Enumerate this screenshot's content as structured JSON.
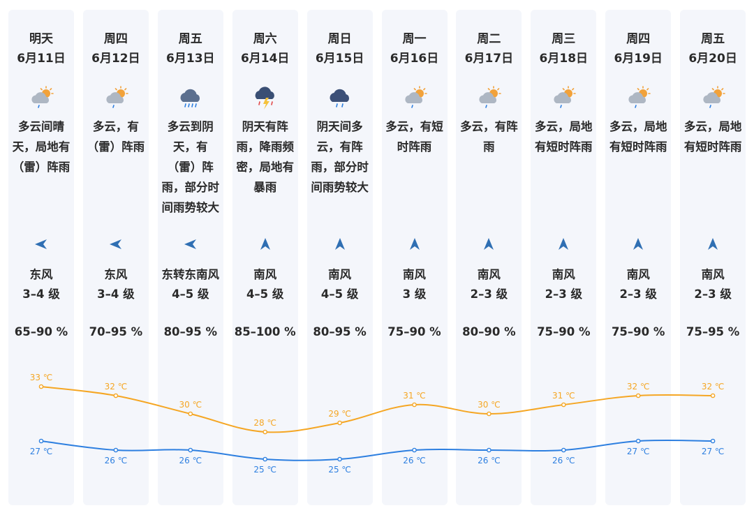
{
  "forecast": [
    {
      "day": "明天",
      "date": "6月11日",
      "icon": "cloud-sun-rain-icon",
      "desc": "多云间晴天，局地有（雷）阵雨",
      "wind_dir_icon": "arrow-left-icon",
      "wind_dir": "东风",
      "wind_level": "3–4 级",
      "humidity": "65–90 %"
    },
    {
      "day": "周四",
      "date": "6月12日",
      "icon": "cloud-sun-rain-icon",
      "desc": "多云，有（雷）阵雨",
      "wind_dir_icon": "arrow-left-icon",
      "wind_dir": "东风",
      "wind_level": "3–4 级",
      "humidity": "70–95 %"
    },
    {
      "day": "周五",
      "date": "6月13日",
      "icon": "cloud-heavy-rain-icon",
      "desc": "多云到阴天，有（雷）阵雨，部分时间雨势较大",
      "wind_dir_icon": "arrow-left-icon",
      "wind_dir": "东转东南风",
      "wind_level": "4–5 级",
      "humidity": "80–95 %"
    },
    {
      "day": "周六",
      "date": "6月14日",
      "icon": "thunderstorm-icon",
      "desc": "阴天有阵雨，降雨频密，局地有暴雨",
      "wind_dir_icon": "arrow-up-icon",
      "wind_dir": "南风",
      "wind_level": "4–5 级",
      "humidity": "85–100 %"
    },
    {
      "day": "周日",
      "date": "6月15日",
      "icon": "cloud-rain-icon",
      "desc": "阴天间多云，有阵雨，部分时间雨势较大",
      "wind_dir_icon": "arrow-up-icon",
      "wind_dir": "南风",
      "wind_level": "4–5 级",
      "humidity": "80–95 %"
    },
    {
      "day": "周一",
      "date": "6月16日",
      "icon": "cloud-sun-rain-icon",
      "desc": "多云，有短时阵雨",
      "wind_dir_icon": "arrow-up-icon",
      "wind_dir": "南风",
      "wind_level": "3 级",
      "humidity": "75–90 %"
    },
    {
      "day": "周二",
      "date": "6月17日",
      "icon": "cloud-sun-rain-icon",
      "desc": "多云，有阵雨",
      "wind_dir_icon": "arrow-up-icon",
      "wind_dir": "南风",
      "wind_level": "2–3 级",
      "humidity": "80–90 %"
    },
    {
      "day": "周三",
      "date": "6月18日",
      "icon": "cloud-sun-rain-icon",
      "desc": "多云，局地有短时阵雨",
      "wind_dir_icon": "arrow-up-icon",
      "wind_dir": "南风",
      "wind_level": "2–3 级",
      "humidity": "75–90 %"
    },
    {
      "day": "周四",
      "date": "6月19日",
      "icon": "cloud-sun-rain-icon",
      "desc": "多云，局地有短时阵雨",
      "wind_dir_icon": "arrow-up-icon",
      "wind_dir": "南风",
      "wind_level": "2–3 级",
      "humidity": "75–90 %"
    },
    {
      "day": "周五",
      "date": "6月20日",
      "icon": "cloud-sun-rain-icon",
      "desc": "多云，局地有短时阵雨",
      "wind_dir_icon": "arrow-up-icon",
      "wind_dir": "南风",
      "wind_level": "2–3 级",
      "humidity": "75–95 %"
    }
  ],
  "colors": {
    "high": "#f5a623",
    "low": "#2d7fe0",
    "arrow": "#2f6fb3",
    "text": "#2a2a2a",
    "card": "#f4f6fb"
  },
  "chart_data": {
    "type": "line",
    "categories": [
      "6月11日",
      "6月12日",
      "6月13日",
      "6月14日",
      "6月15日",
      "6月16日",
      "6月17日",
      "6月18日",
      "6月19日",
      "6月20日"
    ],
    "unit": "℃",
    "series": [
      {
        "values": [
          33,
          32,
          30,
          28,
          29,
          31,
          30,
          31,
          32,
          32
        ],
        "labels": [
          "33 ℃",
          "32 ℃",
          "30 ℃",
          "28 ℃",
          "29 ℃",
          "31 ℃",
          "30 ℃",
          "31 ℃",
          "32 ℃",
          "32 ℃"
        ]
      },
      {
        "values": [
          27,
          26,
          26,
          25,
          25,
          26,
          26,
          26,
          27,
          27
        ],
        "labels": [
          "27 ℃",
          "26 ℃",
          "26 ℃",
          "25 ℃",
          "25 ℃",
          "26 ℃",
          "26 ℃",
          "26 ℃",
          "27 ℃",
          "27 ℃"
        ]
      }
    ]
  }
}
